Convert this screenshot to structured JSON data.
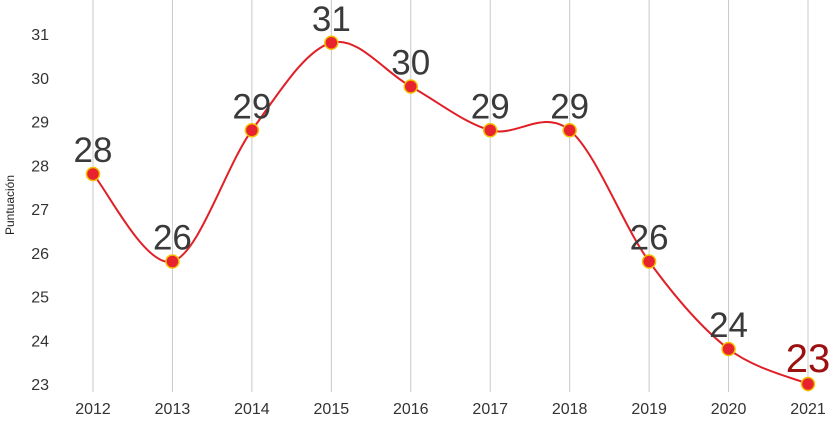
{
  "chart_data": {
    "type": "line",
    "title": "",
    "xlabel": "",
    "ylabel": "Puntuación",
    "categories": [
      "2012",
      "2013",
      "2014",
      "2015",
      "2016",
      "2017",
      "2018",
      "2019",
      "2020",
      "2021"
    ],
    "series": [
      {
        "values": [
          27.8,
          25.8,
          28.8,
          30.8,
          29.8,
          28.8,
          28.8,
          25.8,
          23.8,
          23.0
        ],
        "data_labels": [
          "28",
          "26",
          "29",
          "31",
          "30",
          "29",
          "29",
          "26",
          "24",
          "23"
        ]
      }
    ],
    "ylim": [
      23,
      31
    ],
    "yticks": [
      "23",
      "24",
      "25",
      "26",
      "27",
      "28",
      "29",
      "30",
      "31"
    ],
    "grid": "vertical",
    "smoothed": true,
    "colors": {
      "line": "#e02026",
      "marker_fill": "#e8232f",
      "marker_stroke": "#f2c200",
      "label": "#3a3a3a",
      "last_label": "#9b1111",
      "grid": "#c8c8c8"
    }
  }
}
